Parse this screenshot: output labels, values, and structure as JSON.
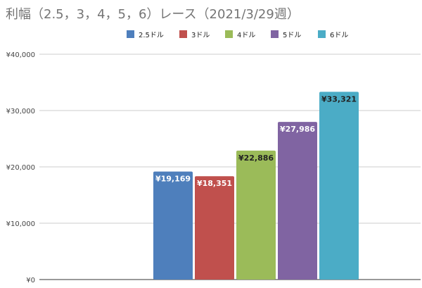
{
  "chart_data": {
    "type": "bar",
    "title": "利幅（2.5，3，4，5，6）レース（2021/3/29週）",
    "xlabel": "",
    "ylabel": "",
    "ylim": [
      0,
      40000
    ],
    "yticks": [
      0,
      10000,
      20000,
      30000,
      40000
    ],
    "ytick_labels": [
      "¥0",
      "¥10,000",
      "¥20,000",
      "¥30,000",
      "¥40,000"
    ],
    "grid": true,
    "legend_position": "top",
    "series": [
      {
        "name": "2.5ドル",
        "values": [
          19169
        ],
        "label": "¥19,169",
        "color": "#4e7fbc"
      },
      {
        "name": "3ドル",
        "values": [
          18351
        ],
        "label": "¥18,351",
        "color": "#c0504d"
      },
      {
        "name": "4ドル",
        "values": [
          22886
        ],
        "label": "¥22,886",
        "color": "#9bbb59"
      },
      {
        "name": "5ドル",
        "values": [
          27986
        ],
        "label": "¥27,986",
        "color": "#8064a2"
      },
      {
        "name": "6ドル",
        "values": [
          33321
        ],
        "label": "¥33,321",
        "color": "#4bacc6"
      }
    ],
    "label_colors": [
      "#ffffff",
      "#ffffff",
      "#222222",
      "#ffffff",
      "#222222"
    ]
  }
}
